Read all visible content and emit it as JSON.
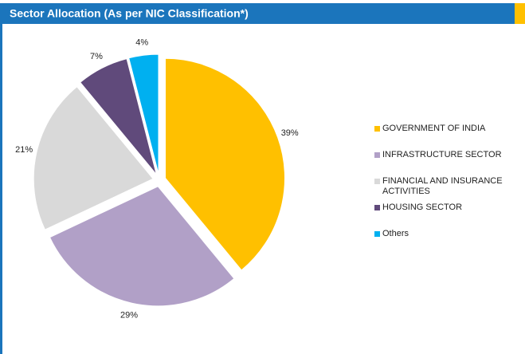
{
  "chart_data": {
    "type": "pie",
    "title": "Sector Allocation (As per NIC Classification*)",
    "categories": [
      "GOVERNMENT OF INDIA",
      "INFRASTRUCTURE SECTOR",
      "FINANCIAL AND INSURANCE ACTIVITIES",
      "HOUSING SECTOR",
      "Others"
    ],
    "values": [
      39,
      29,
      21,
      7,
      4
    ],
    "value_labels": [
      "39%",
      "29%",
      "21%",
      "7%",
      "4%"
    ],
    "colors": [
      "#FFC000",
      "#B1A0C7",
      "#D9D9D9",
      "#604A7B",
      "#00B0F0"
    ]
  }
}
